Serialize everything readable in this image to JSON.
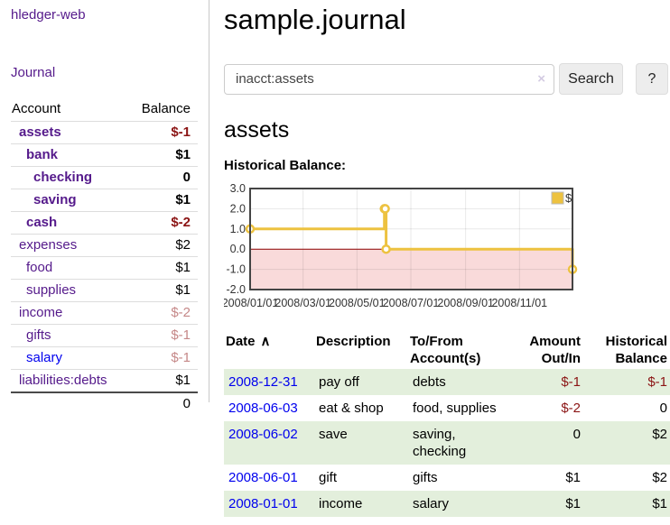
{
  "sidebar": {
    "brand": "hledger-web",
    "nav_journal": "Journal",
    "accounts_table": {
      "headers": {
        "account": "Account",
        "balance": "Balance"
      },
      "rows": [
        {
          "name": "assets",
          "level": 1,
          "bold": true,
          "balance": "$-1",
          "balance_tone": "negative",
          "link_tone": "visited"
        },
        {
          "name": "bank",
          "level": 2,
          "bold": true,
          "balance": "$1",
          "balance_tone": "plain",
          "link_tone": "visited"
        },
        {
          "name": "checking",
          "level": 3,
          "bold": true,
          "balance": "0",
          "balance_tone": "plain",
          "link_tone": "visited"
        },
        {
          "name": "saving",
          "level": 3,
          "bold": true,
          "balance": "$1",
          "balance_tone": "plain",
          "link_tone": "visited"
        },
        {
          "name": "cash",
          "level": 2,
          "bold": true,
          "balance": "$-2",
          "balance_tone": "negative",
          "link_tone": "visited"
        },
        {
          "name": "expenses",
          "level": 1,
          "bold": false,
          "balance": "$2",
          "balance_tone": "plain",
          "link_tone": "visited"
        },
        {
          "name": "food",
          "level": 2,
          "bold": false,
          "balance": "$1",
          "balance_tone": "plain",
          "link_tone": "visited"
        },
        {
          "name": "supplies",
          "level": 2,
          "bold": false,
          "balance": "$1",
          "balance_tone": "plain",
          "link_tone": "visited"
        },
        {
          "name": "income",
          "level": 1,
          "bold": false,
          "balance": "$-2",
          "balance_tone": "negative-muted",
          "link_tone": "visited"
        },
        {
          "name": "gifts",
          "level": 2,
          "bold": false,
          "balance": "$-1",
          "balance_tone": "negative-muted",
          "link_tone": "visited"
        },
        {
          "name": "salary",
          "level": 2,
          "bold": false,
          "balance": "$-1",
          "balance_tone": "negative-muted",
          "link_tone": "unvisited"
        },
        {
          "name": "liabilities:debts",
          "level": 1,
          "bold": false,
          "balance": "$1",
          "balance_tone": "plain",
          "link_tone": "visited"
        }
      ],
      "total": "0"
    }
  },
  "header": {
    "title": "sample.journal"
  },
  "search": {
    "value": "inacct:assets",
    "clear_icon": "×",
    "button_label": "Search",
    "help_label": "?"
  },
  "account_page": {
    "heading": "assets",
    "chart_label": "Historical Balance:"
  },
  "chart_data": {
    "type": "line",
    "step": true,
    "title": "Historical Balance:",
    "legend": {
      "label": "$",
      "position": "top-right"
    },
    "series": [
      {
        "name": "$",
        "color": "#edc240",
        "points": [
          [
            "2008-01-01",
            1
          ],
          [
            "2008-06-01",
            2
          ],
          [
            "2008-06-02",
            2
          ],
          [
            "2008-06-03",
            0
          ],
          [
            "2008-12-31",
            -1
          ]
        ]
      }
    ],
    "xrange": [
      "2008-01-01",
      "2008-12-31"
    ],
    "ylim": [
      -2,
      3
    ],
    "yticks": [
      3,
      2,
      1,
      0,
      -1,
      -2
    ],
    "ytick_labels": [
      "3.0",
      "2.0",
      "1.0",
      "0.0",
      "-1.0",
      "-2.0"
    ],
    "xticks": [
      "2008-01-01",
      "2008-03-01",
      "2008-05-01",
      "2008-07-01",
      "2008-09-01",
      "2008-11-01"
    ],
    "xtick_labels": [
      "2008/01/01",
      "2008/03/01",
      "2008/05/01",
      "2008/07/01",
      "2008/09/01",
      "2008/11/01"
    ],
    "grid": true,
    "negative_fill": "#f9dada",
    "zero_line_color": "#8b0000",
    "border_color": "#444444"
  },
  "transactions": {
    "headers": {
      "date": "Date",
      "description": "Description",
      "accounts": "To/From Account(s)",
      "amount": "Amount Out/In",
      "balance": "Historical Balance"
    },
    "sort": {
      "column": "Date",
      "direction": "ascending",
      "icon": "∧"
    },
    "rows": [
      {
        "date": "2008-12-31",
        "description": "pay off",
        "accounts": "debts",
        "amount": "$-1",
        "balance": "$-1"
      },
      {
        "date": "2008-06-03",
        "description": "eat & shop",
        "accounts": "food, supplies",
        "amount": "$-2",
        "balance": "0"
      },
      {
        "date": "2008-06-02",
        "description": "save",
        "accounts": "saving, checking",
        "amount": "0",
        "balance": "$2"
      },
      {
        "date": "2008-06-01",
        "description": "gift",
        "accounts": "gifts",
        "amount": "$1",
        "balance": "$2"
      },
      {
        "date": "2008-01-01",
        "description": "income",
        "accounts": "salary",
        "amount": "$1",
        "balance": "$1"
      }
    ]
  },
  "colors": {
    "link_purple": "#551a8b",
    "link_blue": "#0000ee",
    "negative_red": "#8b1414",
    "negative_muted": "#c58888",
    "row_stripe_green": "#e3efdc",
    "chart_line_gold": "#edc240"
  }
}
